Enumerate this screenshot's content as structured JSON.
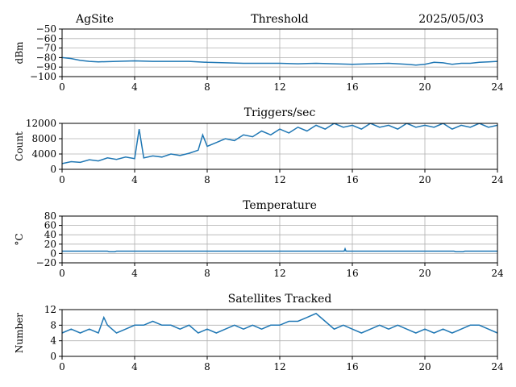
{
  "header": {
    "site": "AgSite",
    "date": "2025/05/03"
  },
  "colors": {
    "line": "#1f77b4",
    "grid": "#b0b0b0",
    "axis": "#000000"
  },
  "chart_data": [
    {
      "type": "line",
      "title": "Threshold",
      "ylabel": "dBm",
      "xlim": [
        0,
        24
      ],
      "ylim": [
        -100,
        -50
      ],
      "xticks": [
        0,
        4,
        8,
        12,
        16,
        20,
        24
      ],
      "xtick_labels": [
        "0",
        "4",
        "8",
        "12",
        "16",
        "20",
        "24"
      ],
      "yticks": [
        -100,
        -90,
        -80,
        -70,
        -60,
        -50
      ],
      "ytick_labels": [
        "−100",
        "−90",
        "−80",
        "−70",
        "−60",
        "−50"
      ],
      "grid": true,
      "series": [
        {
          "x": [
            0,
            0.5,
            1,
            1.5,
            2,
            3,
            4,
            5,
            6,
            7,
            8,
            9,
            10,
            11,
            12,
            13,
            14,
            15,
            16,
            17,
            18,
            19,
            19.5,
            20,
            20.5,
            21,
            21.5,
            22,
            22.5,
            23,
            23.5,
            24
          ],
          "y": [
            -80,
            -81,
            -83,
            -84,
            -84.5,
            -84,
            -83.5,
            -84,
            -84,
            -84,
            -85,
            -85.5,
            -86,
            -86,
            -86,
            -86.5,
            -86,
            -86.5,
            -87,
            -86.5,
            -86,
            -87,
            -88,
            -87,
            -85,
            -85.5,
            -87,
            -86,
            -86,
            -85,
            -84.5,
            -84
          ]
        }
      ]
    },
    {
      "type": "line",
      "title": "Triggers/sec",
      "ylabel": "Count",
      "xlim": [
        0,
        24
      ],
      "ylim": [
        0,
        12000
      ],
      "xticks": [
        0,
        4,
        8,
        12,
        16,
        20,
        24
      ],
      "xtick_labels": [
        "0",
        "4",
        "8",
        "12",
        "16",
        "20",
        "24"
      ],
      "yticks": [
        0,
        4000,
        8000,
        12000
      ],
      "ytick_labels": [
        "0",
        "4000",
        "8000",
        "12000"
      ],
      "grid": true,
      "series": [
        {
          "x": [
            0,
            0.5,
            1,
            1.5,
            2,
            2.5,
            3,
            3.5,
            4,
            4.25,
            4.5,
            5,
            5.5,
            6,
            6.5,
            7,
            7.5,
            7.75,
            8,
            8.5,
            9,
            9.5,
            10,
            10.5,
            11,
            11.5,
            12,
            12.5,
            13,
            13.5,
            14,
            14.5,
            15,
            15.5,
            16,
            16.5,
            17,
            17.5,
            18,
            18.5,
            19,
            19.5,
            20,
            20.5,
            21,
            21.5,
            22,
            22.5,
            23,
            23.5,
            24
          ],
          "y": [
            1500,
            2000,
            1800,
            2500,
            2200,
            3000,
            2600,
            3200,
            2800,
            10500,
            3000,
            3500,
            3200,
            4000,
            3600,
            4200,
            5000,
            9000,
            6000,
            7000,
            8000,
            7500,
            9000,
            8500,
            10000,
            9000,
            10500,
            9500,
            11000,
            10000,
            11500,
            10500,
            12000,
            11000,
            11500,
            10500,
            12000,
            11000,
            11500,
            10500,
            12000,
            11000,
            11500,
            11000,
            12000,
            10500,
            11500,
            11000,
            12000,
            11000,
            11500
          ]
        }
      ]
    },
    {
      "type": "line",
      "title": "Temperature",
      "ylabel": "°C",
      "xlim": [
        0,
        24
      ],
      "ylim": [
        -20,
        80
      ],
      "xticks": [
        0,
        4,
        8,
        12,
        16,
        20,
        24
      ],
      "xtick_labels": [
        "0",
        "4",
        "8",
        "12",
        "16",
        "20",
        "24"
      ],
      "yticks": [
        -20,
        0,
        20,
        40,
        60,
        80
      ],
      "ytick_labels": [
        "−20",
        "0",
        "20",
        "40",
        "60",
        "80"
      ],
      "grid": true,
      "series": [
        {
          "x": [
            0,
            2.5,
            2.6,
            2.9,
            3,
            8,
            12,
            15.55,
            15.6,
            15.65,
            16,
            20,
            21.6,
            21.7,
            22.1,
            22.2,
            24
          ],
          "y": [
            5,
            5,
            4,
            4,
            5,
            5,
            5,
            5,
            10,
            5,
            5,
            5,
            5,
            4,
            4,
            5,
            5
          ]
        }
      ]
    },
    {
      "type": "line",
      "title": "Satellites Tracked",
      "ylabel": "Number",
      "xlim": [
        0,
        24
      ],
      "ylim": [
        0,
        12
      ],
      "xticks": [
        0,
        4,
        8,
        12,
        16,
        20,
        24
      ],
      "xtick_labels": [
        "0",
        "4",
        "8",
        "12",
        "16",
        "20",
        "24"
      ],
      "yticks": [
        0,
        4,
        8,
        12
      ],
      "ytick_labels": [
        "0",
        "4",
        "8",
        "12"
      ],
      "grid": true,
      "series": [
        {
          "x": [
            0,
            0.5,
            1,
            1.5,
            2,
            2.3,
            2.5,
            3,
            3.5,
            4,
            4.5,
            5,
            5.5,
            6,
            6.5,
            7,
            7.5,
            8,
            8.5,
            9,
            9.5,
            10,
            10.5,
            11,
            11.5,
            12,
            12.5,
            13,
            13.5,
            14,
            14.5,
            15,
            15.5,
            16,
            16.5,
            17,
            17.5,
            18,
            18.5,
            19,
            19.5,
            20,
            20.5,
            21,
            21.5,
            22,
            22.5,
            23,
            23.5,
            24
          ],
          "y": [
            6,
            7,
            6,
            7,
            6,
            10,
            8,
            6,
            7,
            8,
            8,
            9,
            8,
            8,
            7,
            8,
            6,
            7,
            6,
            7,
            8,
            7,
            8,
            7,
            8,
            8,
            9,
            9,
            10,
            11,
            9,
            7,
            8,
            7,
            6,
            7,
            8,
            7,
            8,
            7,
            6,
            7,
            6,
            7,
            6,
            7,
            8,
            8,
            7,
            6
          ]
        }
      ]
    }
  ]
}
